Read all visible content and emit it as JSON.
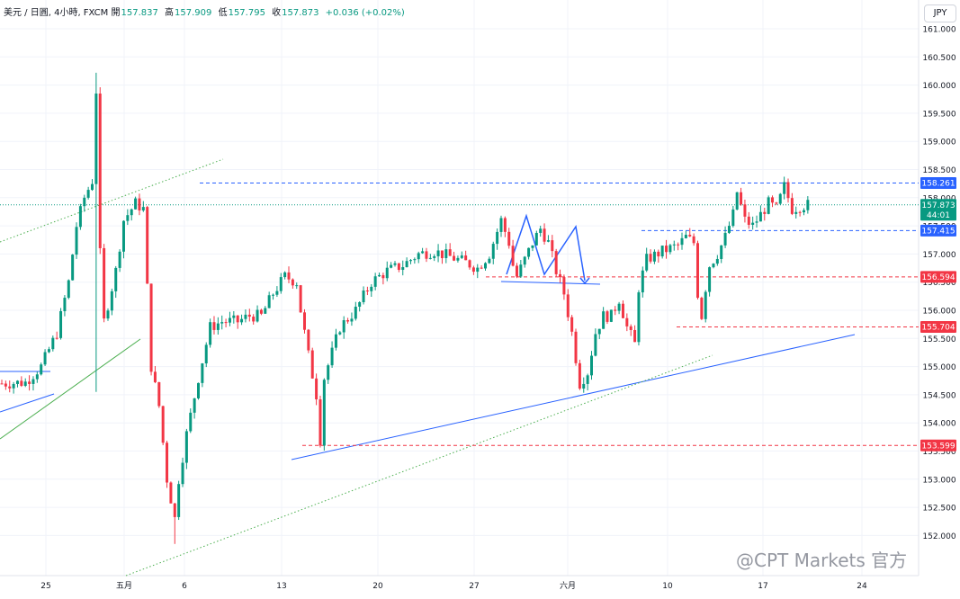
{
  "header": {
    "symbol": "美元 / 日圓, 4小時, FXCM",
    "open_label": "開",
    "open": "157.837",
    "high_label": "高",
    "high": "157.909",
    "low_label": "低",
    "low": "157.795",
    "close_label": "收",
    "close": "157.873",
    "change": "+0.036 (+0.02%)"
  },
  "currency_button": "JPY",
  "watermark": "@CPT Markets 官方",
  "colors": {
    "up": "#089981",
    "down": "#f23645",
    "blue_line": "#2962ff",
    "red_level": "#f23645",
    "green_line": "#4caf50"
  },
  "chart_data": {
    "type": "candlestick",
    "x_ticks": [
      "25",
      "五月",
      "6",
      "13",
      "20",
      "27",
      "六月",
      "10",
      "17",
      "24"
    ],
    "y_ticks": [
      "161.000",
      "160.500",
      "160.000",
      "159.500",
      "159.000",
      "158.500",
      "158.000",
      "157.500",
      "157.000",
      "156.500",
      "156.000",
      "155.500",
      "155.000",
      "154.500",
      "154.000",
      "153.500",
      "153.000",
      "152.500",
      "152.000"
    ],
    "ylim": [
      151.75,
      161.25
    ],
    "current_price": {
      "label": "157.873",
      "countdown": "44:01",
      "value": 157.873
    },
    "levels": [
      {
        "label": "158.261",
        "value": 158.261,
        "color": "blue"
      },
      {
        "label": "157.415",
        "value": 157.415,
        "color": "blue"
      },
      {
        "label": "156.594",
        "value": 156.594,
        "color": "red"
      },
      {
        "label": "155.704",
        "value": 155.704,
        "color": "red"
      },
      {
        "label": "153.599",
        "value": 153.599,
        "color": "red"
      }
    ],
    "path_points": [
      [
        0,
        154.7
      ],
      [
        6,
        154.72
      ],
      [
        10,
        155.0
      ],
      [
        14,
        155.6
      ],
      [
        17,
        156.5
      ],
      [
        19,
        157.5
      ],
      [
        21,
        158.0
      ],
      [
        23,
        158.3
      ],
      [
        24,
        159.9
      ],
      [
        25,
        157.0
      ],
      [
        26,
        155.8
      ],
      [
        29,
        156.7
      ],
      [
        31,
        157.6
      ],
      [
        34,
        157.9
      ],
      [
        36,
        157.8
      ],
      [
        38,
        155.0
      ],
      [
        40,
        154.3
      ],
      [
        42,
        153.0
      ],
      [
        44,
        152.3
      ],
      [
        45,
        153.0
      ],
      [
        47,
        153.8
      ],
      [
        50,
        154.8
      ],
      [
        53,
        155.7
      ],
      [
        56,
        155.8
      ],
      [
        60,
        155.8
      ],
      [
        63,
        155.9
      ],
      [
        66,
        155.9
      ],
      [
        69,
        156.3
      ],
      [
        72,
        156.6
      ],
      [
        75,
        156.5
      ],
      [
        76,
        156.0
      ],
      [
        78,
        155.2
      ],
      [
        80,
        154.5
      ],
      [
        81,
        153.7
      ],
      [
        82,
        154.8
      ],
      [
        86,
        155.7
      ],
      [
        90,
        156.0
      ],
      [
        94,
        156.5
      ],
      [
        98,
        156.7
      ],
      [
        102,
        156.8
      ],
      [
        106,
        157.0
      ],
      [
        110,
        157.05
      ],
      [
        114,
        156.95
      ],
      [
        118,
        156.85
      ],
      [
        121,
        156.75
      ],
      [
        124,
        157.0
      ],
      [
        125,
        157.2
      ],
      [
        127,
        157.6
      ],
      [
        129,
        157.2
      ],
      [
        130,
        156.8
      ],
      [
        131,
        156.6
      ],
      [
        133,
        156.9
      ],
      [
        135,
        157.2
      ],
      [
        137,
        157.45
      ],
      [
        139,
        157.2
      ],
      [
        141,
        156.7
      ],
      [
        143,
        156.3
      ],
      [
        145,
        155.6
      ],
      [
        147,
        154.7
      ],
      [
        149,
        154.9
      ],
      [
        151,
        155.6
      ],
      [
        153,
        155.9
      ],
      [
        155,
        155.9
      ],
      [
        157,
        156.2
      ],
      [
        159,
        155.7
      ],
      [
        161,
        155.4
      ],
      [
        162,
        156.4
      ],
      [
        164,
        156.9
      ],
      [
        168,
        157.05
      ],
      [
        172,
        157.15
      ],
      [
        174,
        157.3
      ],
      [
        176,
        157.2
      ],
      [
        177,
        156.3
      ],
      [
        178,
        155.9
      ],
      [
        179,
        156.4
      ],
      [
        180,
        156.8
      ],
      [
        182,
        157.0
      ],
      [
        184,
        157.3
      ],
      [
        186,
        157.7
      ],
      [
        187,
        158.1
      ],
      [
        189,
        157.6
      ],
      [
        191,
        157.5
      ],
      [
        193,
        157.7
      ],
      [
        195,
        157.9
      ],
      [
        197,
        157.8
      ],
      [
        199,
        158.2
      ],
      [
        201,
        157.8
      ],
      [
        203,
        157.85
      ],
      [
        205,
        157.873
      ]
    ],
    "spikes": [
      {
        "index": 24,
        "high": 160.22,
        "low": 154.55
      },
      {
        "index": 42,
        "high": 153.5,
        "low": 153.05
      },
      {
        "index": 44,
        "high": 152.5,
        "low": 151.85
      }
    ]
  }
}
